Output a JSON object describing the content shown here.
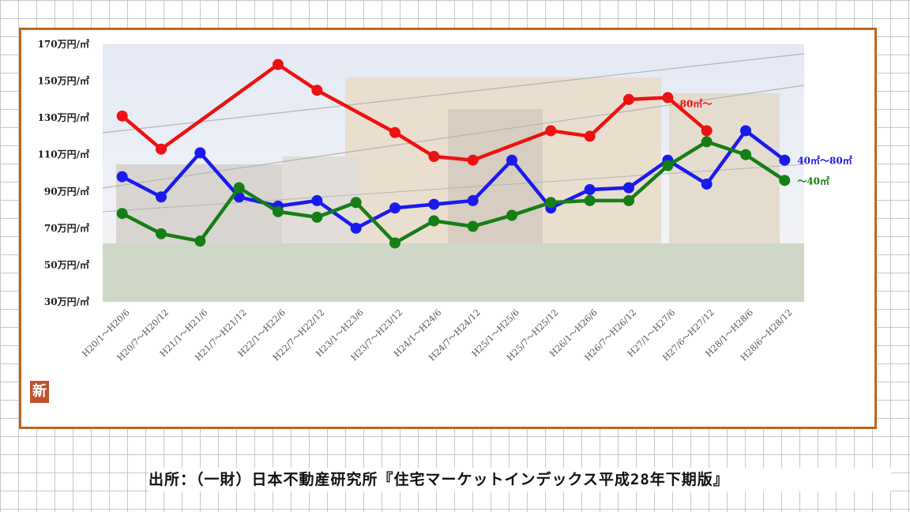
{
  "chart_data": {
    "type": "line",
    "categories": [
      "H20/1～H20/6",
      "H20/7～H20/12",
      "H21/1～H21/6",
      "H21/7～H21/12",
      "H22/1～H22/6",
      "H22/7～H22/12",
      "H23/1～H23/6",
      "H23/7～H23/12",
      "H24/1～H24/6",
      "H24/7～H24/12",
      "H25/1～H25/6",
      "H25/7～H25/12",
      "H26/1～H26/6",
      "H26/7～H26/12",
      "H27/1～H27/6",
      "H27/6～H27/12",
      "H28/1～H28/6",
      "H28/6～H28/12"
    ],
    "y_ticks": [
      "170万円/㎡",
      "150万円/㎡",
      "130万円/㎡",
      "110万円/㎡",
      "90万円/㎡",
      "70万円/㎡",
      "50万円/㎡",
      "30万円/㎡"
    ],
    "ylim": [
      30,
      170
    ],
    "series": [
      {
        "name": "80㎡～",
        "color": "#ee1111",
        "values": [
          131,
          113,
          null,
          null,
          159,
          145,
          null,
          122,
          109,
          107,
          null,
          123,
          120,
          140,
          141,
          123,
          null,
          null
        ]
      },
      {
        "name": "40㎡～80㎡",
        "color": "#1a1aee",
        "values": [
          98,
          87,
          111,
          87,
          82,
          85,
          70,
          81,
          83,
          85,
          107,
          81,
          91,
          92,
          107,
          94,
          123,
          107
        ]
      },
      {
        "name": "～40㎡",
        "color": "#157e15",
        "values": [
          78,
          67,
          63,
          92,
          79,
          76,
          84,
          62,
          74,
          71,
          77,
          84,
          85,
          85,
          104,
          117,
          110,
          96
        ]
      }
    ]
  },
  "source_note": "出所：（一財）日本不動産研究所『住宅マーケットインデックス平成28年下期版』",
  "logo_text": "新"
}
